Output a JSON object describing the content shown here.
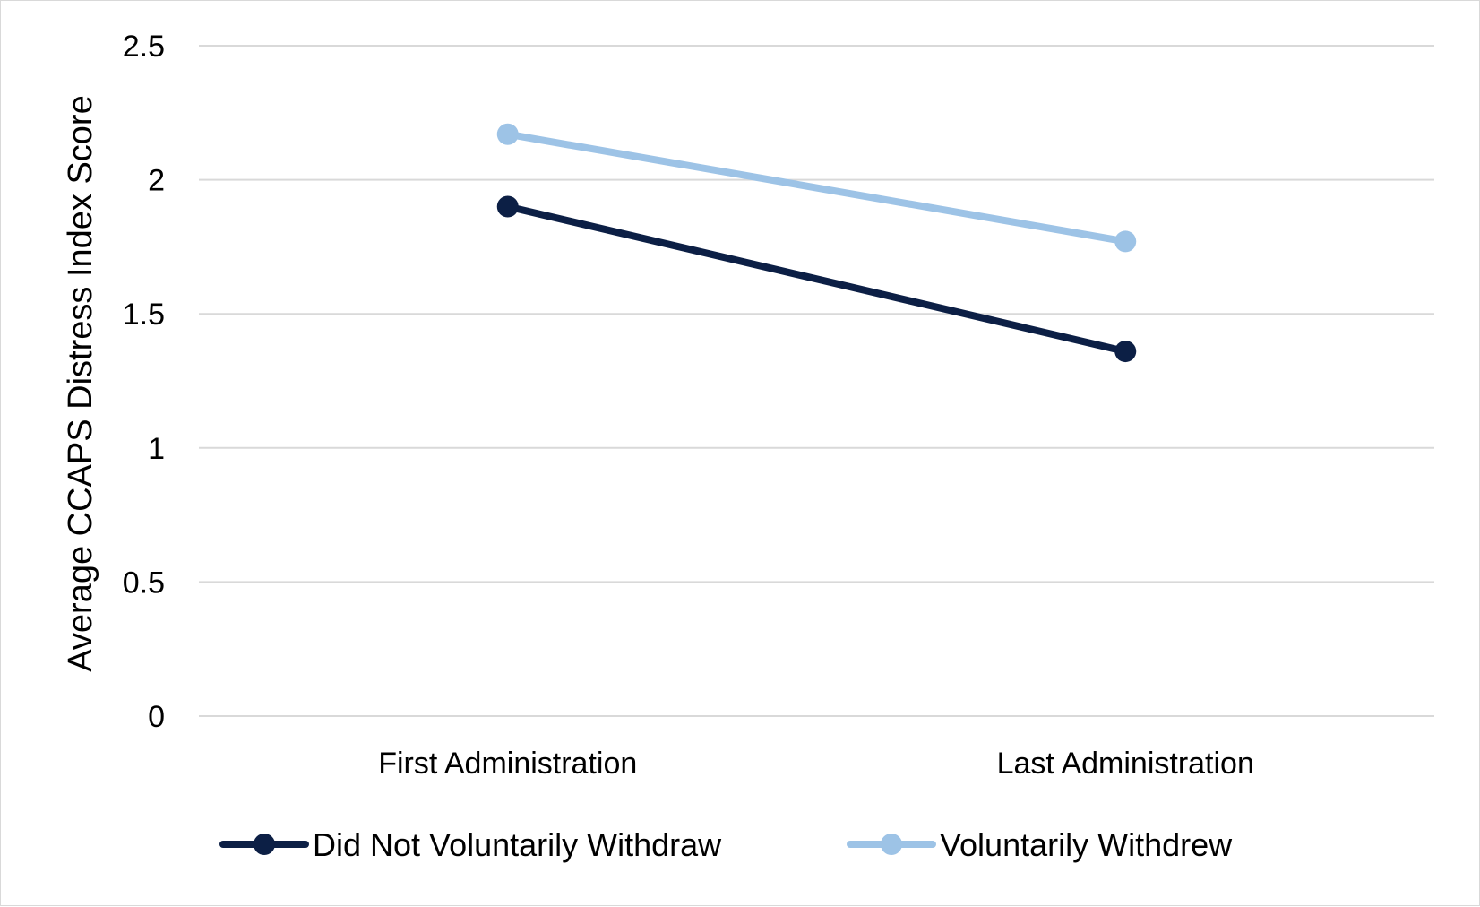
{
  "chart_data": {
    "type": "line",
    "categories": [
      "First Administration",
      "Last Administration"
    ],
    "series": [
      {
        "name": "Did Not Voluntarily Withdraw",
        "values": [
          1.9,
          1.36
        ],
        "color": "#0c1f45"
      },
      {
        "name": "Voluntarily Withdrew",
        "values": [
          2.17,
          1.77
        ],
        "color": "#9dc3e6"
      }
    ],
    "title": "",
    "xlabel": "",
    "ylabel": "Average CCAPS Distress Index Score",
    "ylim": [
      0,
      2.5
    ],
    "yticks": [
      "0",
      "0.5",
      "1",
      "1.5",
      "2",
      "2.5"
    ],
    "grid": true,
    "gridline_color": "#d9d9d9",
    "legend_position": "bottom"
  }
}
